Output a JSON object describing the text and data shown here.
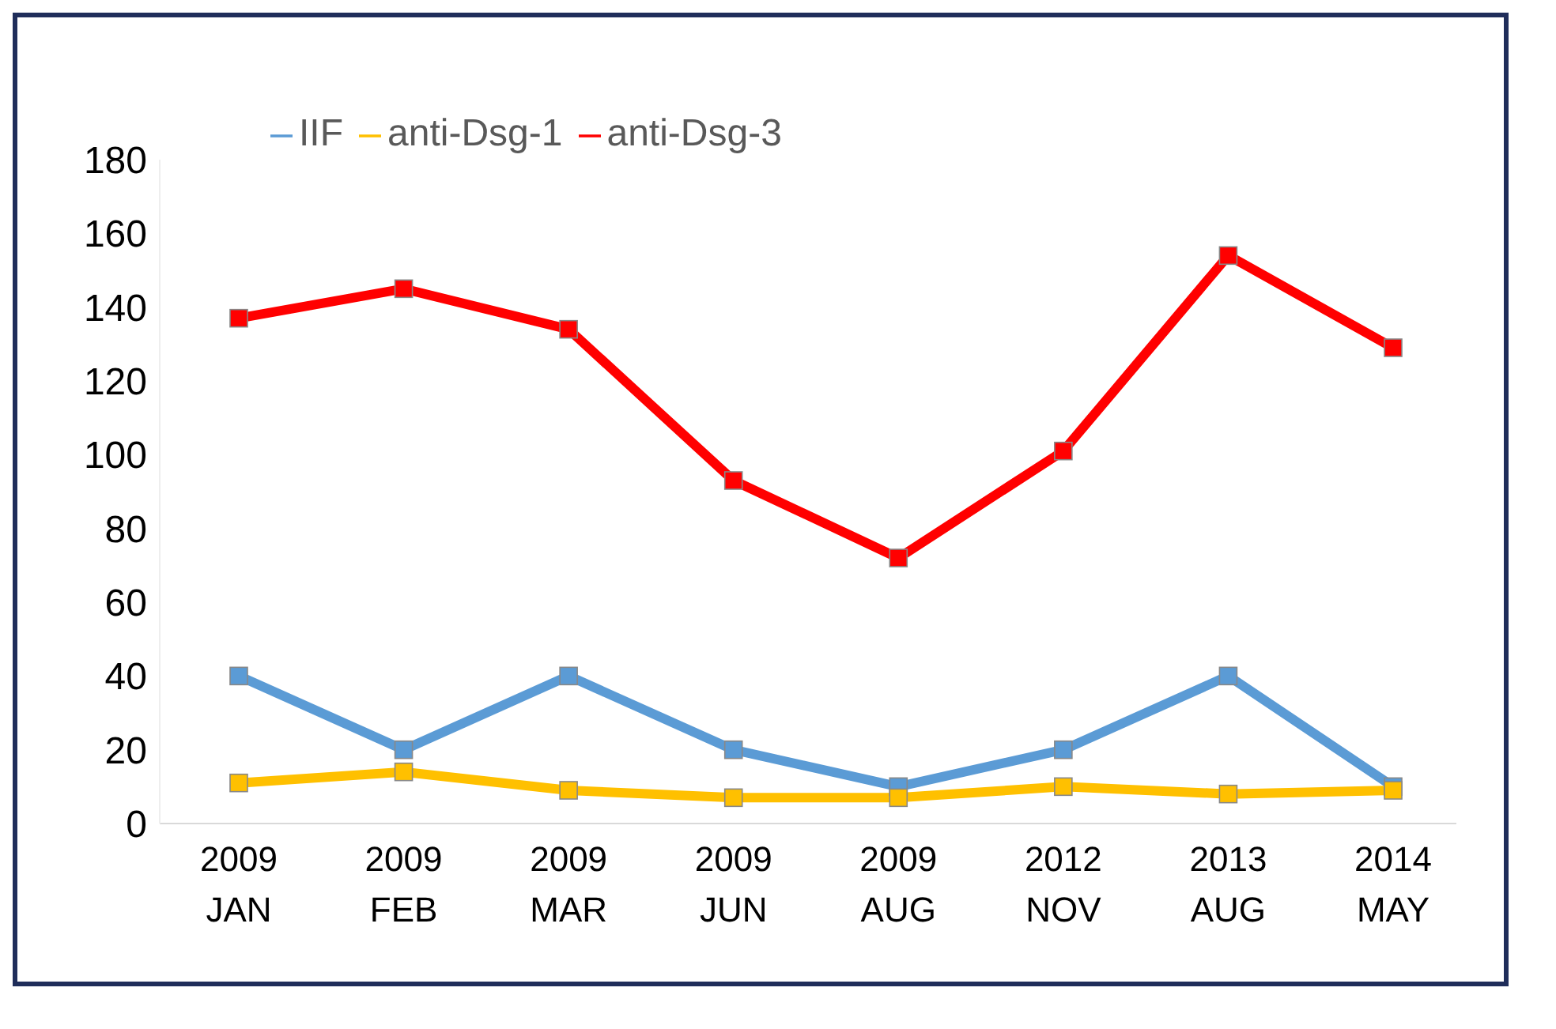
{
  "chart_data": {
    "type": "line",
    "categories": [
      "2009 JAN",
      "2009 FEB",
      "2009 MAR",
      "2009 JUN",
      "2009 AUG",
      "2012 NOV",
      "2013 AUG",
      "2014 MAY"
    ],
    "series": [
      {
        "name": "IIF",
        "color": "#5b9bd5",
        "values": [
          40,
          20,
          40,
          20,
          10,
          20,
          40,
          10
        ]
      },
      {
        "name": "anti-Dsg-1",
        "color": "#ffc000",
        "values": [
          11,
          14,
          9,
          7,
          7,
          10,
          8,
          9
        ]
      },
      {
        "name": "anti-Dsg-3",
        "color": "#ff0000",
        "values": [
          137,
          145,
          134,
          93,
          72,
          101,
          154,
          129
        ]
      }
    ],
    "ylim": [
      0,
      180
    ],
    "yticks": [
      0,
      20,
      40,
      60,
      80,
      100,
      120,
      140,
      160,
      180
    ],
    "grid": false,
    "legend": "top left",
    "marker": "square",
    "line_style": "solid"
  }
}
